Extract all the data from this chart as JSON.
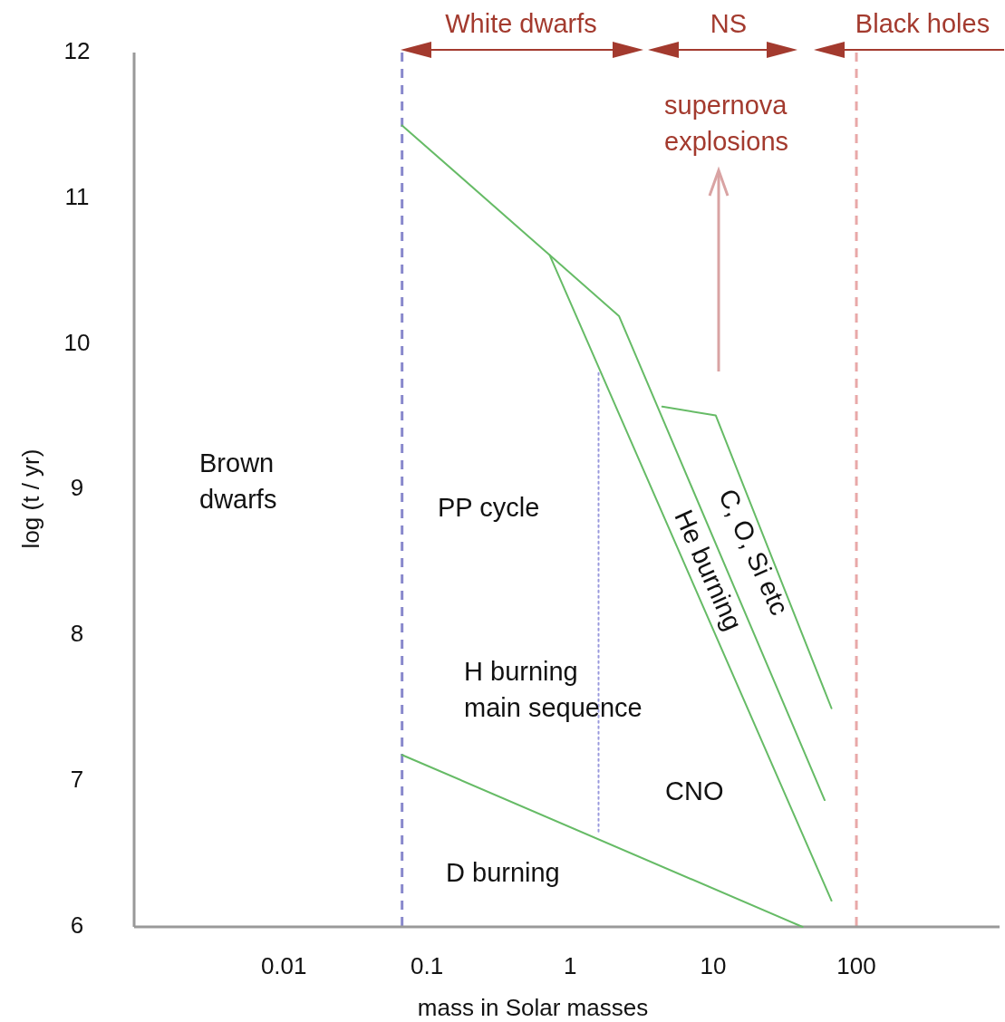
{
  "chart_data": {
    "type": "line",
    "xlabel": "mass in Solar masses",
    "ylabel": "log (t / yr)",
    "log": "x",
    "xlim": [
      0.0009,
      1000
    ],
    "xticks": [
      0.01,
      0.1,
      1,
      10,
      100
    ],
    "ylim": [
      6,
      12
    ],
    "yticks": [
      6,
      7,
      8,
      9,
      10,
      11,
      12
    ],
    "marker": "none",
    "series": [
      {
        "color": "#66bb66",
        "x": [
          0.067,
          0.72,
          2.2,
          60
        ],
        "values": [
          11.5,
          10.61,
          10.19,
          6.87
        ]
      },
      {
        "color": "#66bb66",
        "x": [
          0.72,
          67
        ],
        "values": [
          10.61,
          6.18
        ]
      },
      {
        "color": "#66bb66",
        "x": [
          4.4,
          10.4,
          67
        ],
        "values": [
          9.57,
          9.51,
          7.5
        ]
      },
      {
        "color": "#66bb66",
        "x": [
          0.067,
          42
        ],
        "values": [
          7.18,
          6
        ]
      },
      {
        "color": "#9999dd",
        "line_style": "dotted",
        "x": [
          1.58,
          1.58
        ],
        "values": [
          9.8,
          6.63
        ]
      }
    ],
    "ref_lines": [
      {
        "axis": "x",
        "value": 0.067,
        "color": "#8888cc",
        "line_style": "dashed"
      },
      {
        "axis": "x",
        "value": 100,
        "color": "#e8a8a8",
        "line_style": "dashed"
      }
    ],
    "annotations": [
      "Brown\ndwarfs",
      "PP cycle",
      "H burning\nmain sequence",
      "CNO",
      "D burning",
      "He burning",
      "C, O, Si etc",
      "supernova\nexplosions",
      "White dwarfs",
      "NS",
      "Black holes"
    ]
  }
}
